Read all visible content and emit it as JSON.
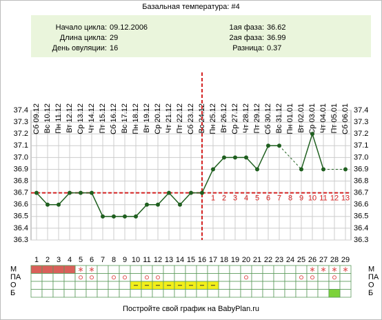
{
  "chart_data": {
    "type": "line",
    "title": "Базальная температура: #4",
    "info": {
      "cycle_start_label": "Начало цикла:",
      "cycle_start": "09.12.2006",
      "cycle_length_label": "Длина цикла:",
      "cycle_length": 29,
      "ovulation_label": "День овуляции:",
      "ovulation_day": 16,
      "phase1_label": "1ая фаза:",
      "phase1": 36.62,
      "phase2_label": "2ая фаза:",
      "phase2": 36.99,
      "difference_label": "Разница:",
      "difference": 0.37
    },
    "x": [
      1,
      2,
      3,
      4,
      5,
      6,
      7,
      8,
      9,
      10,
      11,
      12,
      13,
      14,
      15,
      16,
      17,
      18,
      19,
      20,
      21,
      22,
      23,
      24,
      25,
      26,
      27,
      28,
      29
    ],
    "dates": [
      "Сб 09.12",
      "Вс 10.12",
      "Пн 11.12",
      "Вт 12.12",
      "Ср 13.12",
      "Чт 14.12",
      "Пт 15.12",
      "Сб 16.12",
      "Вс 17.12",
      "Пн 18.12",
      "Вт 19.12",
      "Ср 20.12",
      "Чт 21.12",
      "Пт 22.12",
      "Сб 23.12",
      "Вс 24.12",
      "Пн 25.12",
      "Вт 26.12",
      "Ср 27.12",
      "Чт 28.12",
      "Пт 29.12",
      "Сб 30.12",
      "Вс 31.12",
      "Пн 01.01",
      "Вт 02.01",
      "Ср 03.01",
      "Чт 04.01",
      "Пт 05.01",
      "Сб 06.01"
    ],
    "values": [
      36.7,
      36.6,
      36.6,
      36.7,
      36.7,
      36.7,
      36.5,
      36.5,
      36.5,
      36.5,
      36.6,
      36.6,
      36.7,
      36.6,
      36.7,
      36.7,
      36.9,
      37.0,
      37.0,
      37.0,
      36.9,
      37.1,
      37.1,
      null,
      36.9,
      37.2,
      36.9,
      null,
      36.9
    ],
    "color": "#1f5f1f",
    "cover_line": 36.7,
    "cover_color": "#d42020",
    "luteal_days": [
      1,
      2,
      3,
      4,
      5,
      6,
      7,
      8,
      9,
      10,
      11,
      12,
      13
    ],
    "ylim": [
      36.3,
      37.4
    ],
    "yticks": [
      36.3,
      36.4,
      36.5,
      36.6,
      36.7,
      36.8,
      36.9,
      {
        "value": 37,
        "label": "37.0"
      },
      37.1,
      37.2,
      37.3,
      37.4
    ],
    "grid": true,
    "table_rows": [
      {
        "label": "М",
        "color": "#d9605a",
        "filled_days": [
          1,
          2,
          3,
          4
        ],
        "star_days": [
          5,
          6,
          26,
          27,
          28,
          29
        ]
      },
      {
        "label": "ПА",
        "circle_days": [
          5,
          6,
          8,
          9,
          11,
          12,
          20,
          25,
          26,
          28
        ]
      },
      {
        "label": "О",
        "color": "#f2ef1a",
        "dash_days": [
          10,
          11,
          12,
          13,
          14,
          15,
          16,
          17
        ]
      },
      {
        "label": "Б",
        "color": "#7cd23a",
        "filled_days": [
          28
        ]
      }
    ],
    "footer": "Постройте свой график на BabyPlan.ru"
  }
}
